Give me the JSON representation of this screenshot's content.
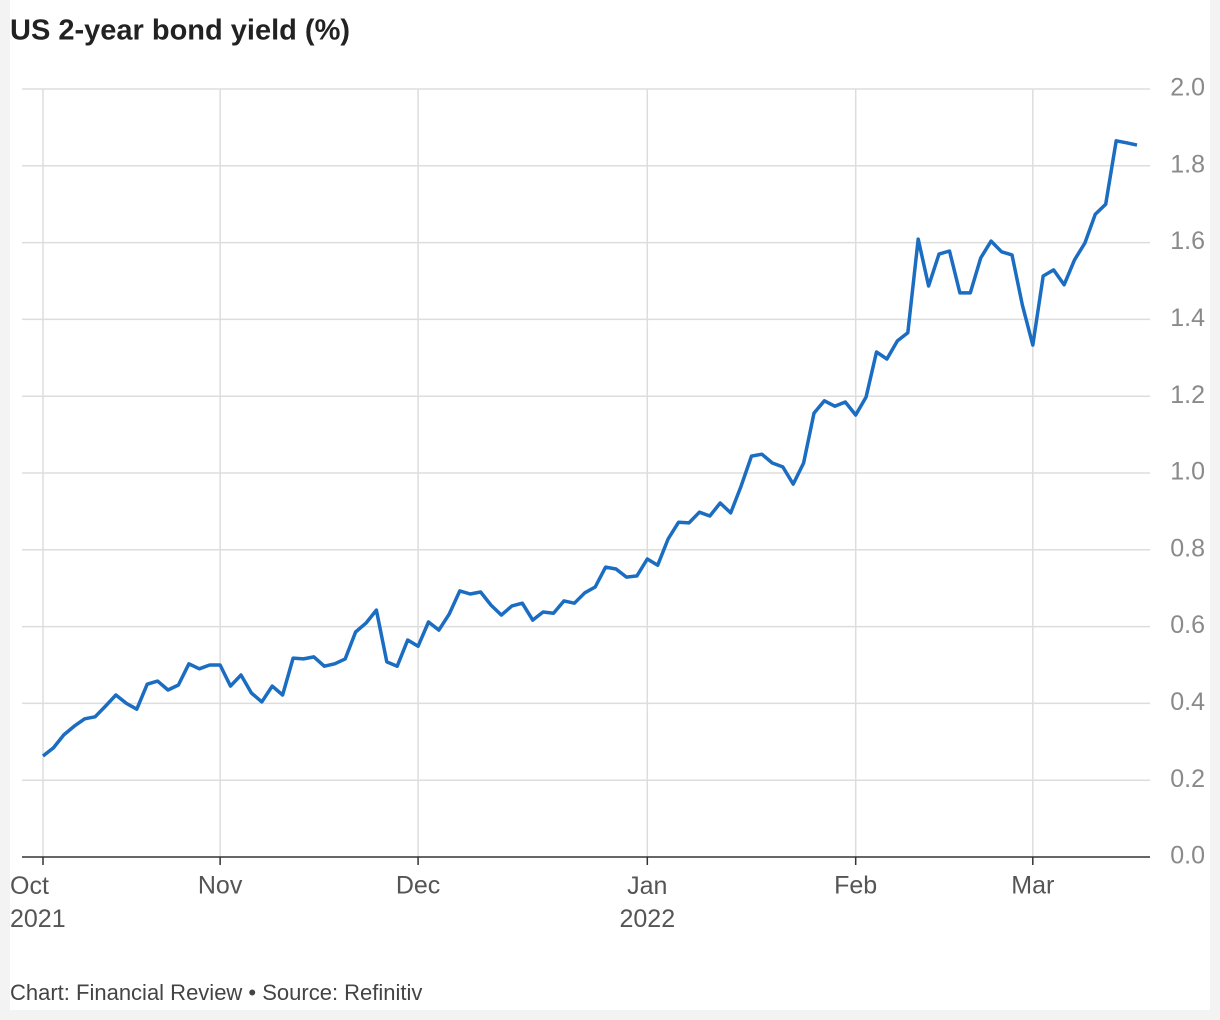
{
  "chart_data": {
    "type": "line",
    "title": "US 2-year bond yield (%)",
    "source": "Chart: Financial Review • Source: Refinitiv",
    "categories": [
      "Oct 2021",
      null,
      null,
      null,
      null,
      null,
      null,
      null,
      null,
      null,
      null,
      null,
      null,
      null,
      null,
      null,
      null,
      "Nov",
      null,
      null,
      null,
      null,
      null,
      null,
      null,
      null,
      null,
      null,
      null,
      null,
      null,
      null,
      null,
      null,
      null,
      null,
      "Dec",
      null,
      null,
      null,
      null,
      null,
      null,
      null,
      null,
      null,
      null,
      null,
      null,
      null,
      null,
      null,
      null,
      null,
      null,
      null,
      null,
      null,
      "Jan 2022",
      null,
      null,
      null,
      null,
      null,
      null,
      null,
      null,
      null,
      null,
      null,
      null,
      null,
      null,
      null,
      null,
      null,
      null,
      null,
      "Feb",
      null,
      null,
      null,
      null,
      null,
      null,
      null,
      null,
      null,
      null,
      null,
      null,
      null,
      null,
      null,
      null,
      "Mar",
      null,
      null,
      null,
      null,
      null,
      null,
      null,
      null,
      null,
      null
    ],
    "series": [
      {
        "name": "US 2-year bond yield",
        "color": "#1b6dc1",
        "values": [
          0.263,
          0.284,
          0.318,
          0.341,
          0.36,
          0.365,
          0.393,
          0.422,
          0.4,
          0.385,
          0.45,
          0.458,
          0.435,
          0.448,
          0.503,
          0.49,
          0.5,
          0.5,
          0.445,
          0.474,
          0.427,
          0.404,
          0.445,
          0.422,
          0.518,
          0.516,
          0.521,
          0.497,
          0.503,
          0.516,
          0.586,
          0.609,
          0.643,
          0.508,
          0.497,
          0.565,
          0.549,
          0.612,
          0.591,
          0.633,
          0.693,
          0.685,
          0.69,
          0.656,
          0.63,
          0.654,
          0.661,
          0.617,
          0.638,
          0.635,
          0.667,
          0.661,
          0.688,
          0.703,
          0.755,
          0.75,
          0.729,
          0.732,
          0.776,
          0.76,
          0.828,
          0.872,
          0.87,
          0.898,
          0.888,
          0.922,
          0.896,
          0.966,
          1.044,
          1.049,
          1.026,
          1.016,
          0.971,
          1.026,
          1.156,
          1.188,
          1.174,
          1.185,
          1.151,
          1.198,
          1.315,
          1.297,
          1.344,
          1.365,
          1.609,
          1.487,
          1.57,
          1.578,
          1.469,
          1.469,
          1.56,
          1.604,
          1.576,
          1.568,
          1.437,
          1.333,
          1.513,
          1.529,
          1.49,
          1.555,
          1.599,
          1.674,
          1.7,
          1.865,
          1.86,
          1.854
        ]
      }
    ],
    "ylim": [
      0,
      2
    ],
    "yticks": [
      {
        "value": 0,
        "label": "0.0"
      },
      0.2,
      0.4,
      0.6,
      0.8,
      {
        "value": 1,
        "label": "1.0"
      },
      1.2,
      1.4,
      1.6,
      1.8,
      {
        "value": 2,
        "label": "2.0"
      }
    ],
    "grid": true
  }
}
